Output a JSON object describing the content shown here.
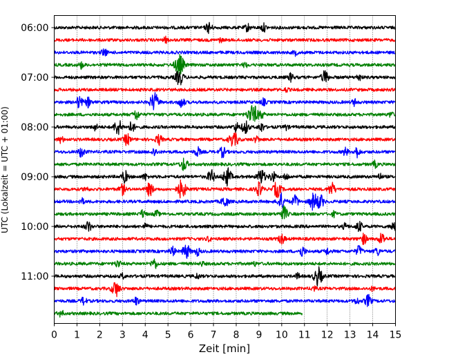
{
  "chart_data": {
    "type": "line",
    "subtype": "seismogram-helicorder",
    "xlabel": "Zeit  [min]",
    "ylabel": "UTC (Lokalzeit = UTC + 01:00)",
    "xlim": [
      0,
      15
    ],
    "x_ticks": [
      "0",
      "1",
      "2",
      "3",
      "4",
      "5",
      "6",
      "7",
      "8",
      "9",
      "10",
      "11",
      "12",
      "13",
      "14",
      "15"
    ],
    "y_ticks": [
      "06:00",
      "07:00",
      "08:00",
      "09:00",
      "10:00",
      "11:00"
    ],
    "grid": "vertical dotted",
    "colors": [
      "#000000",
      "#ff0000",
      "#0000ff",
      "#008000"
    ],
    "traces": [
      {
        "start": "06:00",
        "events": [
          [
            6.8,
            0.8
          ],
          [
            8.5,
            0.6
          ],
          [
            9.2,
            0.6
          ]
        ]
      },
      {
        "start": "06:15",
        "events": [
          [
            4.9,
            0.4
          ],
          [
            7.3,
            0.3
          ]
        ]
      },
      {
        "start": "06:30",
        "events": [
          [
            2.2,
            0.6
          ],
          [
            10.6,
            0.4
          ]
        ]
      },
      {
        "start": "06:45",
        "events": [
          [
            1.2,
            0.5
          ],
          [
            5.5,
            1.6
          ],
          [
            8.4,
            0.4
          ]
        ]
      },
      {
        "start": "07:00",
        "events": [
          [
            5.5,
            1.2
          ],
          [
            10.4,
            0.6
          ],
          [
            11.9,
            1.0
          ],
          [
            13.4,
            0.5
          ]
        ]
      },
      {
        "start": "07:15",
        "events": [
          [
            10.2,
            0.3
          ]
        ]
      },
      {
        "start": "07:30",
        "events": [
          [
            1.1,
            0.9
          ],
          [
            1.5,
            0.7
          ],
          [
            4.4,
            1.4
          ],
          [
            5.6,
            0.8
          ],
          [
            9.2,
            0.5
          ],
          [
            13.2,
            0.5
          ]
        ]
      },
      {
        "start": "07:45",
        "events": [
          [
            3.6,
            0.8
          ],
          [
            8.6,
            0.9
          ],
          [
            8.8,
            1.2
          ],
          [
            9.1,
            0.6
          ],
          [
            14.8,
            0.4
          ]
        ]
      },
      {
        "start": "08:00",
        "events": [
          [
            1.8,
            0.5
          ],
          [
            2.8,
            1.2
          ],
          [
            3.4,
            0.8
          ],
          [
            8.0,
            0.7
          ],
          [
            8.4,
            1.0
          ],
          [
            9.1,
            0.7
          ],
          [
            10.2,
            0.4
          ]
        ]
      },
      {
        "start": "08:15",
        "events": [
          [
            0.3,
            0.5
          ],
          [
            3.2,
            0.9
          ],
          [
            4.6,
            0.8
          ],
          [
            7.8,
            0.9
          ],
          [
            8.0,
            0.7
          ],
          [
            8.9,
            0.5
          ]
        ]
      },
      {
        "start": "08:30",
        "events": [
          [
            1.2,
            0.8
          ],
          [
            4.4,
            0.6
          ],
          [
            6.3,
            0.7
          ],
          [
            7.4,
            0.8
          ],
          [
            12.8,
            0.6
          ],
          [
            13.3,
            0.8
          ]
        ]
      },
      {
        "start": "08:45",
        "events": [
          [
            5.7,
            1.0
          ],
          [
            14.1,
            0.5
          ]
        ]
      },
      {
        "start": "09:00",
        "events": [
          [
            3.1,
            0.9
          ],
          [
            4.0,
            0.5
          ],
          [
            6.9,
            1.0
          ],
          [
            7.6,
            1.4
          ],
          [
            9.1,
            1.2
          ],
          [
            9.6,
            0.8
          ],
          [
            10.2,
            0.5
          ],
          [
            14.3,
            0.5
          ]
        ]
      },
      {
        "start": "09:15",
        "events": [
          [
            1.4,
            0.4
          ],
          [
            3.0,
            0.8
          ],
          [
            4.2,
            1.0
          ],
          [
            5.6,
            1.4
          ],
          [
            9.0,
            1.0
          ],
          [
            9.8,
            1.2
          ],
          [
            12.2,
            1.0
          ]
        ]
      },
      {
        "start": "09:30",
        "events": [
          [
            1.2,
            0.5
          ],
          [
            7.5,
            0.9
          ],
          [
            10.0,
            1.2
          ],
          [
            10.6,
            0.9
          ],
          [
            11.4,
            1.3
          ],
          [
            11.7,
            1.0
          ]
        ]
      },
      {
        "start": "09:45",
        "events": [
          [
            3.9,
            0.6
          ],
          [
            4.5,
            0.5
          ],
          [
            10.1,
            1.1
          ],
          [
            12.3,
            0.4
          ]
        ]
      },
      {
        "start": "10:00",
        "events": [
          [
            1.5,
            0.8
          ],
          [
            4.0,
            0.4
          ],
          [
            12.8,
            0.5
          ],
          [
            13.4,
            0.8
          ],
          [
            14.9,
            0.7
          ]
        ]
      },
      {
        "start": "10:15",
        "events": [
          [
            6.8,
            0.4
          ],
          [
            10.0,
            0.8
          ],
          [
            13.6,
            0.8
          ],
          [
            14.4,
            0.9
          ]
        ]
      },
      {
        "start": "10:30",
        "events": [
          [
            5.2,
            0.7
          ],
          [
            5.8,
            1.1
          ],
          [
            6.3,
            0.6
          ],
          [
            10.9,
            0.8
          ],
          [
            12.0,
            0.5
          ],
          [
            13.4,
            0.8
          ],
          [
            14.2,
            0.6
          ]
        ]
      },
      {
        "start": "10:45",
        "events": [
          [
            2.8,
            0.6
          ],
          [
            4.4,
            0.8
          ],
          [
            6.5,
            0.3
          ],
          [
            8.8,
            0.3
          ]
        ]
      },
      {
        "start": "11:00",
        "events": [
          [
            3.0,
            0.4
          ],
          [
            6.3,
            0.4
          ],
          [
            10.7,
            0.4
          ],
          [
            11.6,
            1.4
          ]
        ]
      },
      {
        "start": "11:15",
        "events": [
          [
            2.7,
            1.2
          ],
          [
            11.4,
            0.4
          ],
          [
            14.0,
            0.3
          ]
        ]
      },
      {
        "start": "11:30",
        "events": [
          [
            1.3,
            0.6
          ],
          [
            3.6,
            0.6
          ],
          [
            13.3,
            0.5
          ],
          [
            13.8,
            0.9
          ]
        ]
      },
      {
        "start": "11:45",
        "events": [
          [
            0.3,
            0.5
          ]
        ],
        "end_minute": 10.9
      }
    ]
  }
}
